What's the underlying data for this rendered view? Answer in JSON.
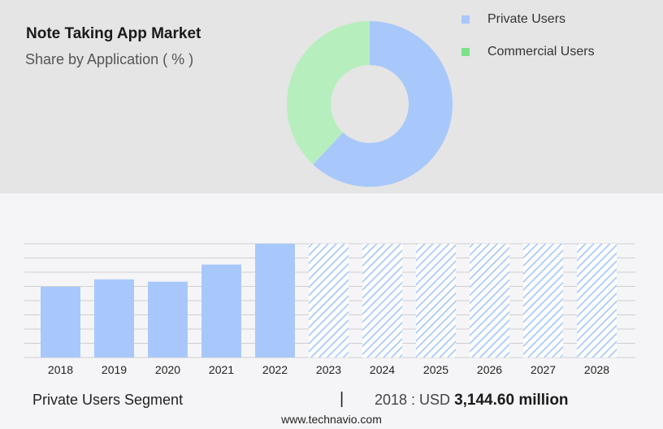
{
  "header": {
    "title": "Note Taking App Market",
    "subtitle": "Share by Application ( % )"
  },
  "colors": {
    "private": "#a8c8fc",
    "commercial": "#b6efbd",
    "commercial_legend": "#7be18a"
  },
  "footer": {
    "segment": "Private Users Segment",
    "separator": "|",
    "year_label": "2018 : USD",
    "value": "3,144.60 million",
    "source": "www.technavio.com"
  },
  "chart_data": [
    {
      "type": "pie",
      "variant": "donut",
      "title": "Share by Application ( % )",
      "categories": [
        "Private Users",
        "Commercial Users"
      ],
      "values": [
        62,
        38
      ],
      "legend": "top-right"
    },
    {
      "type": "bar",
      "categories": [
        "2018",
        "2019",
        "2020",
        "2021",
        "2022",
        "2023",
        "2024",
        "2025",
        "2026",
        "2027",
        "2028"
      ],
      "values": [
        3144.6,
        3473.4,
        3372.5,
        4133.3,
        5058.3,
        5058.3,
        5058.3,
        5058.3,
        5058.3,
        5058.3,
        5058.3
      ],
      "forecast_from": "2023",
      "ylim": [
        0,
        5058.3
      ],
      "grid": true,
      "series_name": "Private Users"
    }
  ]
}
